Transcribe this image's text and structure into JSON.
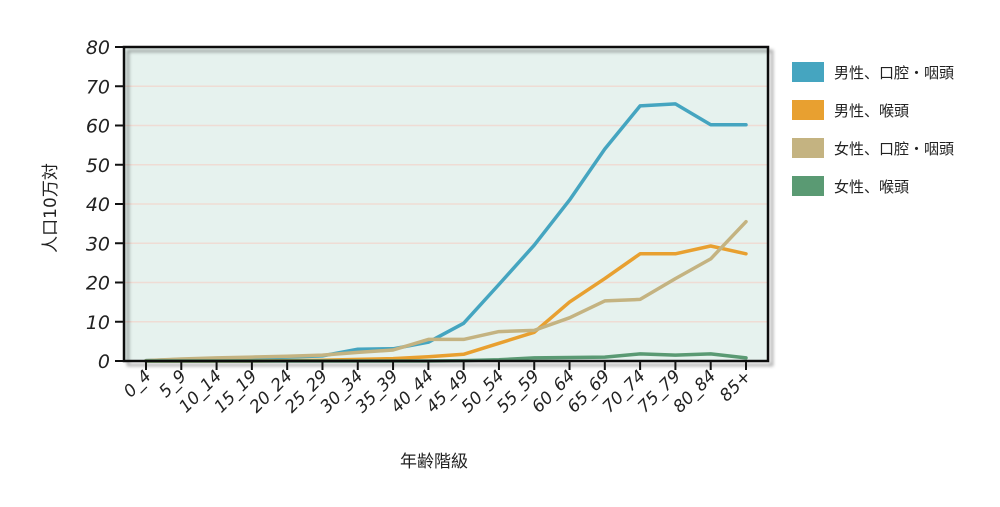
{
  "chart_data": {
    "type": "line",
    "title": "",
    "xlabel": "年齢階級",
    "ylabel": "人口10万対",
    "ylim": [
      0,
      80
    ],
    "yticks": [
      0,
      10,
      20,
      30,
      40,
      50,
      60,
      70,
      80
    ],
    "grid": true,
    "legend_position": "right",
    "plot_background": "#e6f2ee",
    "categories": [
      "0_4",
      "5_9",
      "10_14",
      "15_19",
      "20_24",
      "25_29",
      "30_34",
      "35_39",
      "40_44",
      "45_49",
      "50_54",
      "55_59",
      "60_64",
      "65_69",
      "70_74",
      "75_79",
      "80_84",
      "85+"
    ],
    "series": [
      {
        "name": "男性、口腔・咽頭",
        "color": "#45a5c0",
        "values": [
          0.1,
          0.4,
          0.6,
          0.8,
          1.0,
          1.3,
          3.0,
          3.1,
          4.8,
          9.6,
          19.5,
          29.5,
          41.0,
          54.0,
          65.0,
          65.5,
          60.2,
          60.2
        ]
      },
      {
        "name": "男性、喉頭",
        "color": "#e8a030",
        "values": [
          0.0,
          0.0,
          0.0,
          0.0,
          0.1,
          0.2,
          0.4,
          0.6,
          1.1,
          1.7,
          4.5,
          7.3,
          15.0,
          21.0,
          27.3,
          27.3,
          29.3,
          27.3
        ]
      },
      {
        "name": "女性、口腔・咽頭",
        "color": "#c4b381",
        "values": [
          0.1,
          0.5,
          0.8,
          1.0,
          1.2,
          1.5,
          2.2,
          2.8,
          5.5,
          5.5,
          7.5,
          7.8,
          11.0,
          15.3,
          15.7,
          21.0,
          26.0,
          35.5
        ]
      },
      {
        "name": "女性、喉頭",
        "color": "#5a9a73",
        "values": [
          0.0,
          0.0,
          0.0,
          0.0,
          0.0,
          0.0,
          0.0,
          0.0,
          0.0,
          0.1,
          0.3,
          0.8,
          0.9,
          1.0,
          1.8,
          1.5,
          1.8,
          0.8
        ]
      }
    ]
  }
}
